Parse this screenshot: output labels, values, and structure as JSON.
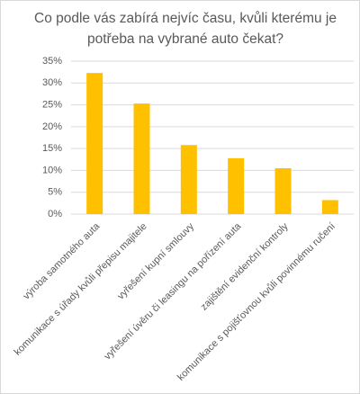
{
  "chart_data": {
    "type": "bar",
    "title": "Co podle vás zabírá nejvíc času, kvůli kterému je potřeba na vybrané auto čekat?",
    "categories": [
      "výroba samotného auta",
      "komunikace s úřady kvůli přepisu majitele",
      "vyřešení kupní smlouvy",
      "vyřešení úvěru či leasingu na pořízení auta",
      "zajištění evidenční kontroly",
      "komunikace s pojišťovnou kvůli povinnému ručení"
    ],
    "values": [
      32.3,
      25.3,
      15.8,
      12.8,
      10.5,
      3.2
    ],
    "color": "#ffc000",
    "ylim": [
      0,
      35
    ],
    "yticks": [
      {
        "value": 0,
        "label": "0%"
      },
      {
        "value": 5,
        "label": "5%"
      },
      {
        "value": 10,
        "label": "10%"
      },
      {
        "value": 15,
        "label": "15%"
      },
      {
        "value": 20,
        "label": "20%"
      },
      {
        "value": 25,
        "label": "25%"
      },
      {
        "value": 30,
        "label": "30%"
      },
      {
        "value": 35,
        "label": "35%"
      }
    ],
    "grid": true
  }
}
